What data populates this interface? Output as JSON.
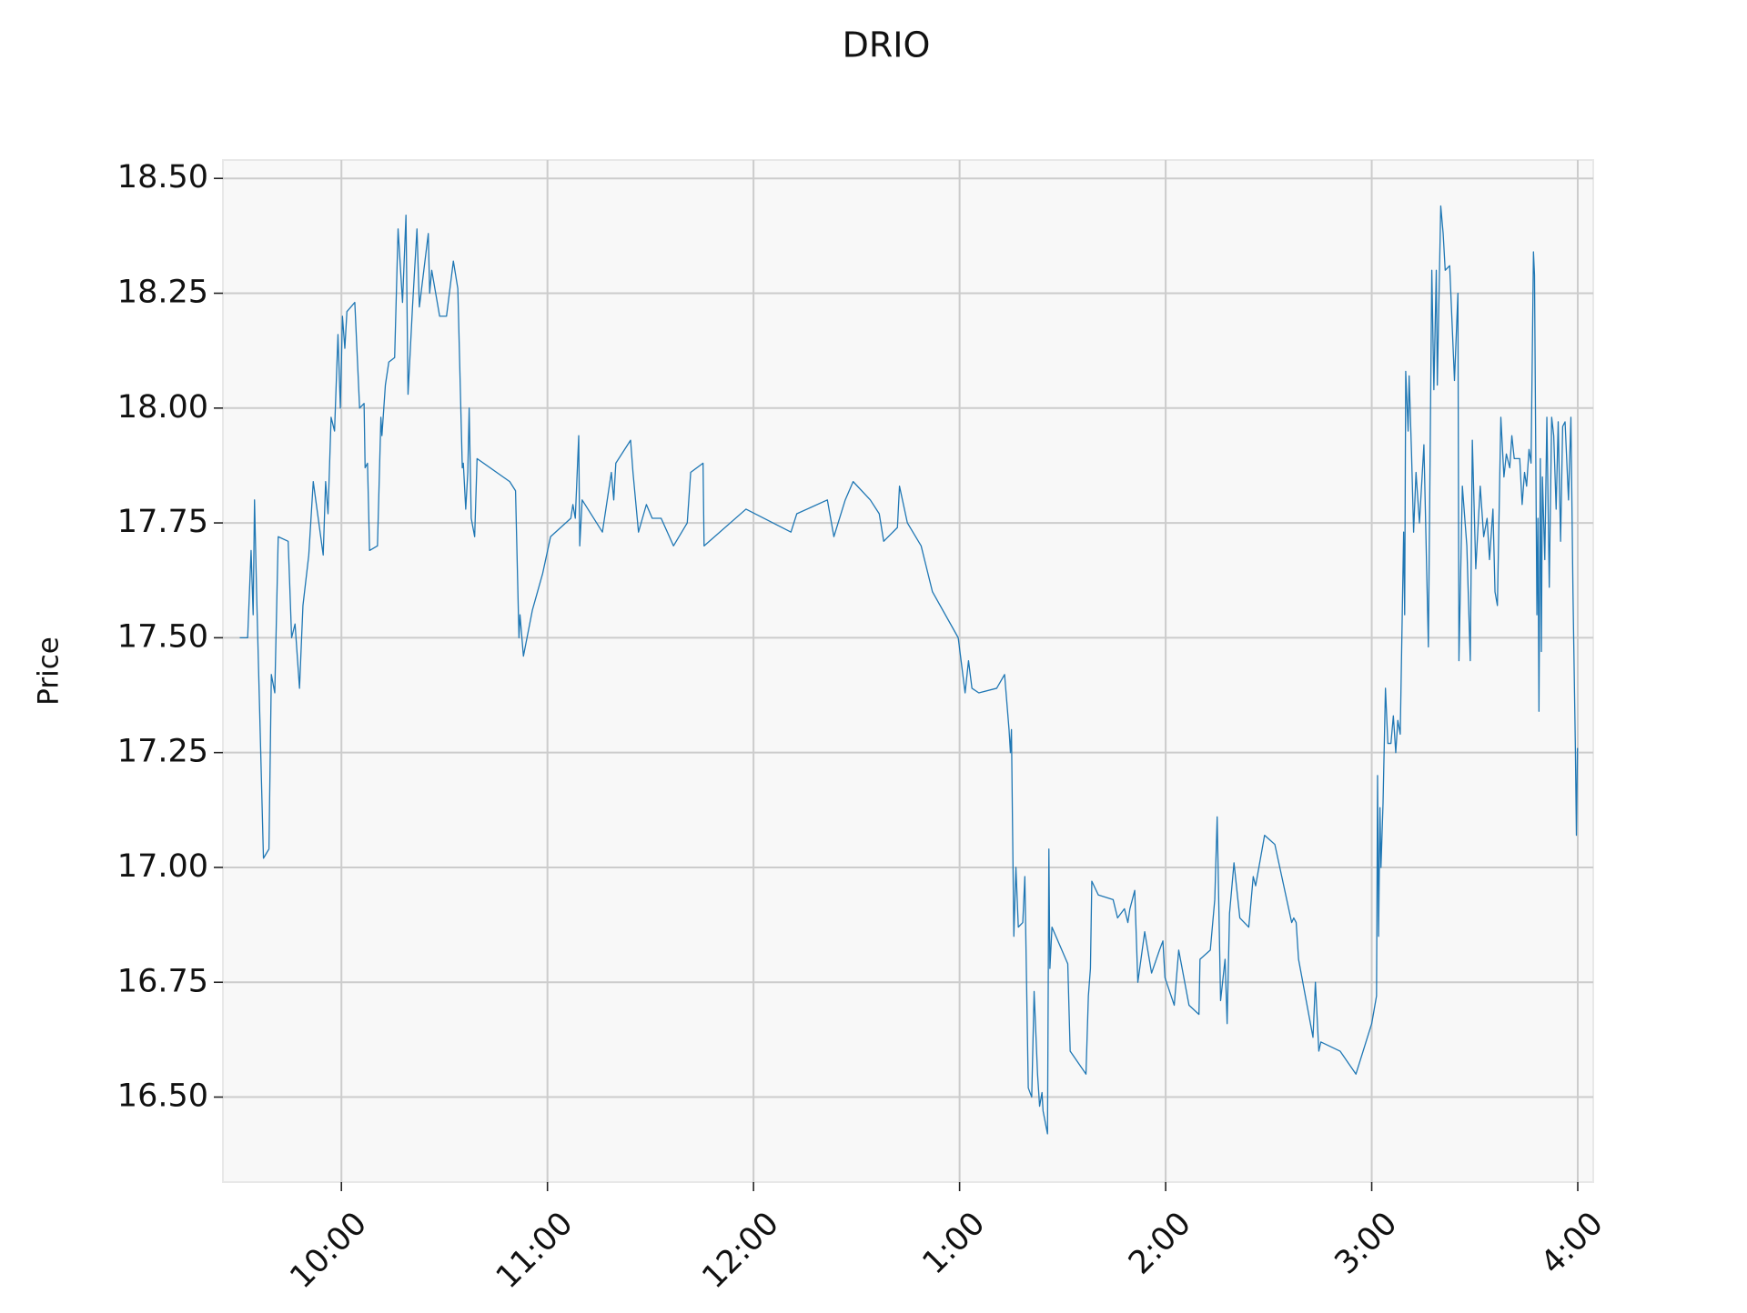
{
  "chart_data": {
    "type": "line",
    "title": "DRIO",
    "y_label": "Price",
    "color": "#1f77b4",
    "grid": true,
    "x": [
      570.4,
      572.7,
      573.7,
      574.3,
      574.7,
      575.3,
      577.3,
      578.9,
      579.6,
      580.6,
      581.6,
      584.5,
      585.5,
      586.5,
      587.8,
      588.8,
      590.5,
      591.8,
      594.7,
      595.4,
      596.1,
      597.0,
      598.0,
      599.0,
      599.7,
      600.3,
      601.0,
      601.6,
      603.9,
      605.3,
      606.6,
      606.9,
      607.6,
      608.2,
      610.5,
      611.5,
      611.8,
      612.8,
      613.8,
      615.5,
      616.5,
      617.8,
      618.8,
      619.4,
      620.7,
      622.0,
      622.7,
      624.0,
      625.3,
      625.7,
      626.3,
      628.6,
      630.6,
      632.6,
      633.9,
      635.2,
      635.5,
      636.2,
      636.8,
      637.2,
      637.8,
      638.8,
      639.5,
      649.0,
      650.7,
      651.7,
      652.0,
      653.0,
      655.6,
      658.6,
      660.9,
      666.8,
      667.4,
      668.1,
      669.1,
      669.4,
      670.1,
      676.0,
      678.6,
      679.3,
      679.9,
      684.2,
      684.9,
      686.5,
      688.8,
      690.5,
      693.1,
      696.7,
      700.7,
      701.7,
      705.3,
      705.6,
      717.8,
      730.9,
      732.6,
      741.5,
      743.4,
      746.7,
      749.0,
      754.0,
      756.6,
      757.9,
      761.9,
      762.5,
      764.8,
      768.8,
      772.1,
      779.6,
      781.6,
      782.6,
      783.6,
      785.6,
      790.8,
      793.1,
      794.4,
      794.8,
      795.1,
      795.4,
      795.8,
      796.4,
      797.1,
      798.4,
      799.0,
      800.0,
      801.0,
      801.7,
      802.7,
      803.3,
      804.0,
      804.3,
      805.6,
      806.0,
      806.3,
      806.9,
      811.5,
      812.2,
      816.8,
      817.5,
      818.1,
      818.5,
      820.4,
      824.7,
      826.0,
      828.0,
      829.0,
      829.6,
      831.0,
      831.9,
      833.9,
      835.9,
      838.2,
      839.2,
      839.8,
      842.5,
      843.8,
      846.8,
      849.7,
      850.0,
      853.0,
      854.3,
      855.0,
      856.0,
      857.3,
      857.9,
      858.6,
      859.9,
      861.6,
      864.2,
      865.5,
      866.2,
      868.8,
      871.8,
      876.7,
      877.3,
      878.0,
      878.7,
      882.9,
      883.6,
      884.6,
      885.2,
      890.8,
      895.4,
      900.0,
      901.4,
      901.7,
      902.0,
      902.4,
      902.7,
      903.3,
      904.0,
      904.7,
      905.6,
      906.3,
      907.0,
      907.6,
      908.3,
      909.3,
      909.6,
      909.9,
      910.6,
      910.9,
      911.6,
      912.2,
      912.9,
      913.9,
      915.2,
      916.5,
      917.5,
      918.1,
      918.8,
      919.1,
      920.1,
      920.8,
      921.4,
      922.7,
      924.1,
      925.1,
      925.4,
      926.4,
      927.7,
      928.7,
      929.3,
      930.3,
      931.6,
      932.6,
      933.6,
      934.3,
      935.3,
      935.9,
      936.6,
      937.6,
      938.5,
      939.2,
      940.2,
      940.8,
      941.5,
      943.1,
      943.8,
      944.5,
      945.1,
      945.8,
      946.4,
      947.1,
      947.4,
      948.1,
      948.4,
      948.7,
      949.1,
      949.4,
      949.7,
      950.4,
      951.0,
      951.7,
      952.4,
      953.0,
      953.7,
      954.3,
      955.0,
      955.6,
      956.3,
      957.3,
      958.0,
      958.6,
      959.3,
      959.6,
      959.9
    ],
    "values": [
      17.5,
      17.5,
      17.69,
      17.55,
      17.8,
      17.6,
      17.02,
      17.04,
      17.42,
      17.38,
      17.72,
      17.71,
      17.5,
      17.53,
      17.39,
      17.57,
      17.68,
      17.84,
      17.68,
      17.84,
      17.77,
      17.98,
      17.95,
      18.16,
      18.0,
      18.2,
      18.13,
      18.21,
      18.23,
      18.0,
      18.01,
      17.87,
      17.88,
      17.69,
      17.7,
      17.98,
      17.94,
      18.05,
      18.1,
      18.11,
      18.39,
      18.23,
      18.42,
      18.03,
      18.22,
      18.39,
      18.22,
      18.3,
      18.38,
      18.25,
      18.3,
      18.2,
      18.2,
      18.32,
      18.26,
      17.87,
      17.88,
      17.78,
      17.86,
      18.0,
      17.76,
      17.72,
      17.89,
      17.84,
      17.82,
      17.5,
      17.55,
      17.46,
      17.56,
      17.64,
      17.72,
      17.76,
      17.79,
      17.76,
      17.94,
      17.7,
      17.8,
      17.73,
      17.86,
      17.8,
      17.88,
      17.93,
      17.86,
      17.73,
      17.79,
      17.76,
      17.76,
      17.7,
      17.75,
      17.86,
      17.88,
      17.7,
      17.78,
      17.73,
      17.77,
      17.8,
      17.72,
      17.8,
      17.84,
      17.8,
      17.77,
      17.71,
      17.74,
      17.83,
      17.75,
      17.7,
      17.6,
      17.5,
      17.38,
      17.45,
      17.39,
      17.38,
      17.39,
      17.42,
      17.3,
      17.25,
      17.3,
      17.1,
      16.85,
      17.0,
      16.87,
      16.88,
      16.98,
      16.52,
      16.5,
      16.73,
      16.55,
      16.48,
      16.51,
      16.47,
      16.42,
      17.04,
      16.78,
      16.87,
      16.79,
      16.6,
      16.55,
      16.72,
      16.78,
      16.97,
      16.94,
      16.93,
      16.89,
      16.91,
      16.88,
      16.91,
      16.95,
      16.75,
      16.86,
      16.77,
      16.82,
      16.84,
      16.76,
      16.7,
      16.82,
      16.7,
      16.68,
      16.8,
      16.82,
      16.93,
      17.11,
      16.71,
      16.8,
      16.66,
      16.9,
      17.01,
      16.89,
      16.87,
      16.98,
      16.96,
      17.07,
      17.05,
      16.88,
      16.89,
      16.88,
      16.8,
      16.63,
      16.75,
      16.6,
      16.62,
      16.6,
      16.55,
      16.66,
      16.72,
      17.2,
      16.85,
      17.13,
      17.0,
      17.14,
      17.39,
      17.27,
      17.27,
      17.33,
      17.25,
      17.32,
      17.29,
      17.73,
      17.55,
      18.08,
      17.95,
      18.07,
      17.9,
      17.73,
      17.86,
      17.75,
      17.92,
      17.48,
      18.3,
      18.04,
      18.3,
      18.05,
      18.44,
      18.38,
      18.3,
      18.31,
      18.06,
      18.25,
      17.45,
      17.83,
      17.7,
      17.45,
      17.93,
      17.65,
      17.83,
      17.72,
      17.76,
      17.67,
      17.78,
      17.6,
      17.57,
      17.98,
      17.85,
      17.9,
      17.87,
      17.94,
      17.89,
      17.89,
      17.79,
      17.86,
      17.83,
      17.91,
      17.88,
      18.34,
      18.29,
      17.55,
      17.76,
      17.34,
      17.89,
      17.47,
      17.85,
      17.67,
      17.98,
      17.61,
      17.98,
      17.94,
      17.78,
      17.97,
      17.71,
      17.96,
      17.97,
      17.8,
      17.98,
      17.6,
      17.26,
      17.07,
      17.26
    ],
    "xlim": [
      565.5,
      964.5
    ],
    "xticks": [
      {
        "value": 600,
        "label": "10:00"
      },
      {
        "value": 660,
        "label": "11:00"
      },
      {
        "value": 720,
        "label": "12:00"
      },
      {
        "value": 780,
        "label": "1:00"
      },
      {
        "value": 840,
        "label": "2:00"
      },
      {
        "value": 900,
        "label": "3:00"
      },
      {
        "value": 960,
        "label": "4:00"
      }
    ],
    "ylim": [
      16.315,
      18.54
    ],
    "yticks": [
      {
        "value": 16.5,
        "label": "16.50"
      },
      {
        "value": 16.75,
        "label": "16.75"
      },
      {
        "value": 17,
        "label": "17.00"
      },
      {
        "value": 17.25,
        "label": "17.25"
      },
      {
        "value": 17.5,
        "label": "17.50"
      },
      {
        "value": 17.75,
        "label": "17.75"
      },
      {
        "value": 18,
        "label": "18.00"
      },
      {
        "value": 18.25,
        "label": "18.25"
      },
      {
        "value": 18.5,
        "label": "18.50"
      }
    ]
  }
}
